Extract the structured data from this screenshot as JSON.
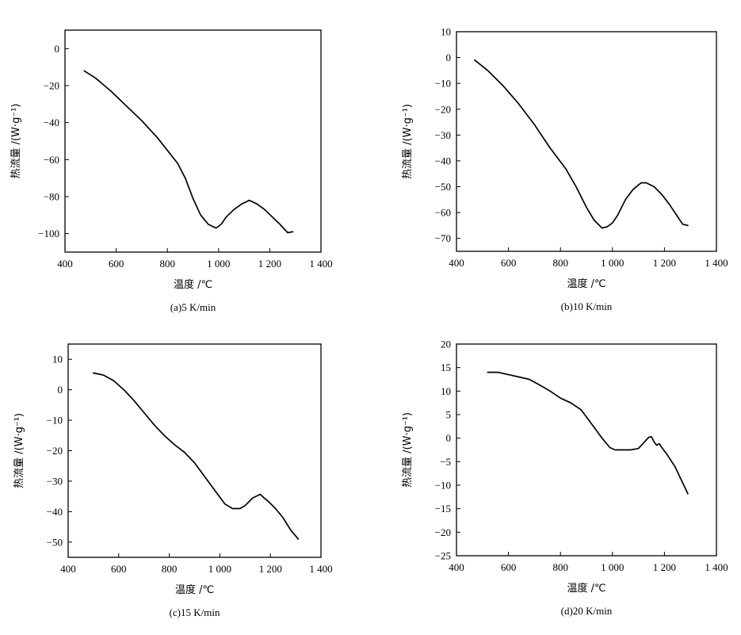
{
  "chart_data": [
    {
      "type": "line",
      "caption": "(a)5 K/min",
      "xlabel": "温度 /℃",
      "ylabel": "热流量 /(W·g⁻¹)",
      "xlim": [
        400,
        1400
      ],
      "ylim": [
        -110,
        10
      ],
      "x_ticks": [
        400,
        600,
        800,
        1000,
        1200,
        1400
      ],
      "x_tick_labels": [
        "400",
        "600",
        "800",
        "1 000",
        "1 200",
        "1 400"
      ],
      "y_ticks": [
        0,
        -20,
        -40,
        -60,
        -80,
        -100
      ],
      "y_tick_labels": [
        "0",
        "−20",
        "−40",
        "−60",
        "−80",
        "−100"
      ],
      "series": [
        {
          "name": "5 K/min",
          "x": [
            475,
            520,
            580,
            640,
            700,
            760,
            800,
            840,
            870,
            900,
            930,
            960,
            990,
            1010,
            1030,
            1060,
            1090,
            1120,
            1150,
            1180,
            1210,
            1240,
            1270,
            1290
          ],
          "y": [
            -12,
            -16,
            -23,
            -31,
            -39,
            -48,
            -55,
            -62,
            -70,
            -81,
            -90,
            -95,
            -97,
            -95,
            -91,
            -87,
            -84,
            -82,
            -84,
            -87,
            -91,
            -95,
            -99.5,
            -99
          ]
        }
      ]
    },
    {
      "type": "line",
      "caption": "(b)10 K/min",
      "xlabel": "温度 /℃",
      "ylabel": "热流量 /(W·g⁻¹)",
      "xlim": [
        400,
        1400
      ],
      "ylim": [
        -75,
        10
      ],
      "x_ticks": [
        400,
        600,
        800,
        1000,
        1200,
        1400
      ],
      "x_tick_labels": [
        "400",
        "600",
        "800",
        "1 000",
        "1 200",
        "1 400"
      ],
      "y_ticks": [
        10,
        0,
        -10,
        -20,
        -30,
        -40,
        -50,
        -60,
        -70
      ],
      "y_tick_labels": [
        "10",
        "0",
        "−10",
        "−20",
        "−30",
        "−40",
        "−50",
        "−60",
        "−70"
      ],
      "series": [
        {
          "name": "10 K/min",
          "x": [
            470,
            520,
            580,
            640,
            700,
            760,
            820,
            860,
            900,
            930,
            960,
            980,
            1000,
            1020,
            1050,
            1080,
            1110,
            1130,
            1160,
            1190,
            1220,
            1250,
            1270,
            1290
          ],
          "y": [
            -1,
            -5,
            -11,
            -18,
            -26,
            -35,
            -43,
            -50,
            -58,
            -63,
            -66,
            -65.5,
            -64,
            -61,
            -55,
            -51,
            -48.5,
            -48.5,
            -50,
            -53,
            -57,
            -61.5,
            -64.5,
            -65
          ]
        }
      ]
    },
    {
      "type": "line",
      "caption": "(c)15 K/min",
      "xlabel": "温度 /℃",
      "ylabel": "热流量 /(W·g⁻¹)",
      "xlim": [
        400,
        1400
      ],
      "ylim": [
        -55,
        15
      ],
      "x_ticks": [
        400,
        600,
        800,
        1000,
        1200,
        1400
      ],
      "x_tick_labels": [
        "400",
        "600",
        "800",
        "1 000",
        "1 200",
        "1 400"
      ],
      "y_ticks": [
        10,
        0,
        -10,
        -20,
        -30,
        -40,
        -50
      ],
      "y_tick_labels": [
        "10",
        "0",
        "−10",
        "−20",
        "−30",
        "−40",
        "−50"
      ],
      "series": [
        {
          "name": "15 K/min",
          "x": [
            500,
            540,
            580,
            620,
            660,
            700,
            740,
            780,
            820,
            860,
            900,
            940,
            980,
            1020,
            1050,
            1080,
            1100,
            1130,
            1160,
            1175,
            1190,
            1220,
            1250,
            1280,
            1310
          ],
          "y": [
            5.5,
            4.8,
            3,
            0,
            -3.5,
            -7.5,
            -11.5,
            -15,
            -18,
            -20.5,
            -24,
            -28.5,
            -33,
            -37.5,
            -39,
            -39,
            -38,
            -35.5,
            -34.3,
            -35.5,
            -36.5,
            -39,
            -42,
            -46,
            -49
          ]
        }
      ]
    },
    {
      "type": "line",
      "caption": "(d)20 K/min",
      "xlabel": "温度 /℃",
      "ylabel": "热流量 /(W·g⁻¹)",
      "xlim": [
        400,
        1400
      ],
      "ylim": [
        -25,
        20
      ],
      "x_ticks": [
        400,
        600,
        800,
        1000,
        1200,
        1400
      ],
      "x_tick_labels": [
        "400",
        "600",
        "800",
        "1 000",
        "1 200",
        "1 400"
      ],
      "y_ticks": [
        20,
        15,
        10,
        5,
        0,
        -5,
        -10,
        -15,
        -20,
        -25
      ],
      "y_tick_labels": [
        "20",
        "15",
        "10",
        "5",
        "0",
        "−5",
        "−10",
        "−15",
        "−20",
        "−25"
      ],
      "series": [
        {
          "name": "20 K/min",
          "x": [
            520,
            560,
            600,
            640,
            680,
            720,
            760,
            800,
            840,
            880,
            920,
            960,
            990,
            1010,
            1040,
            1070,
            1100,
            1120,
            1140,
            1150,
            1160,
            1170,
            1180,
            1190,
            1210,
            1240,
            1270,
            1290
          ],
          "y": [
            14,
            14,
            13.5,
            13,
            12.5,
            11.3,
            10,
            8.5,
            7.5,
            6,
            3,
            0,
            -2,
            -2.5,
            -2.5,
            -2.5,
            -2.2,
            -1,
            0.2,
            0.3,
            -0.8,
            -1.5,
            -1.2,
            -2,
            -3.5,
            -6,
            -9.5,
            -11.8
          ]
        }
      ]
    }
  ]
}
